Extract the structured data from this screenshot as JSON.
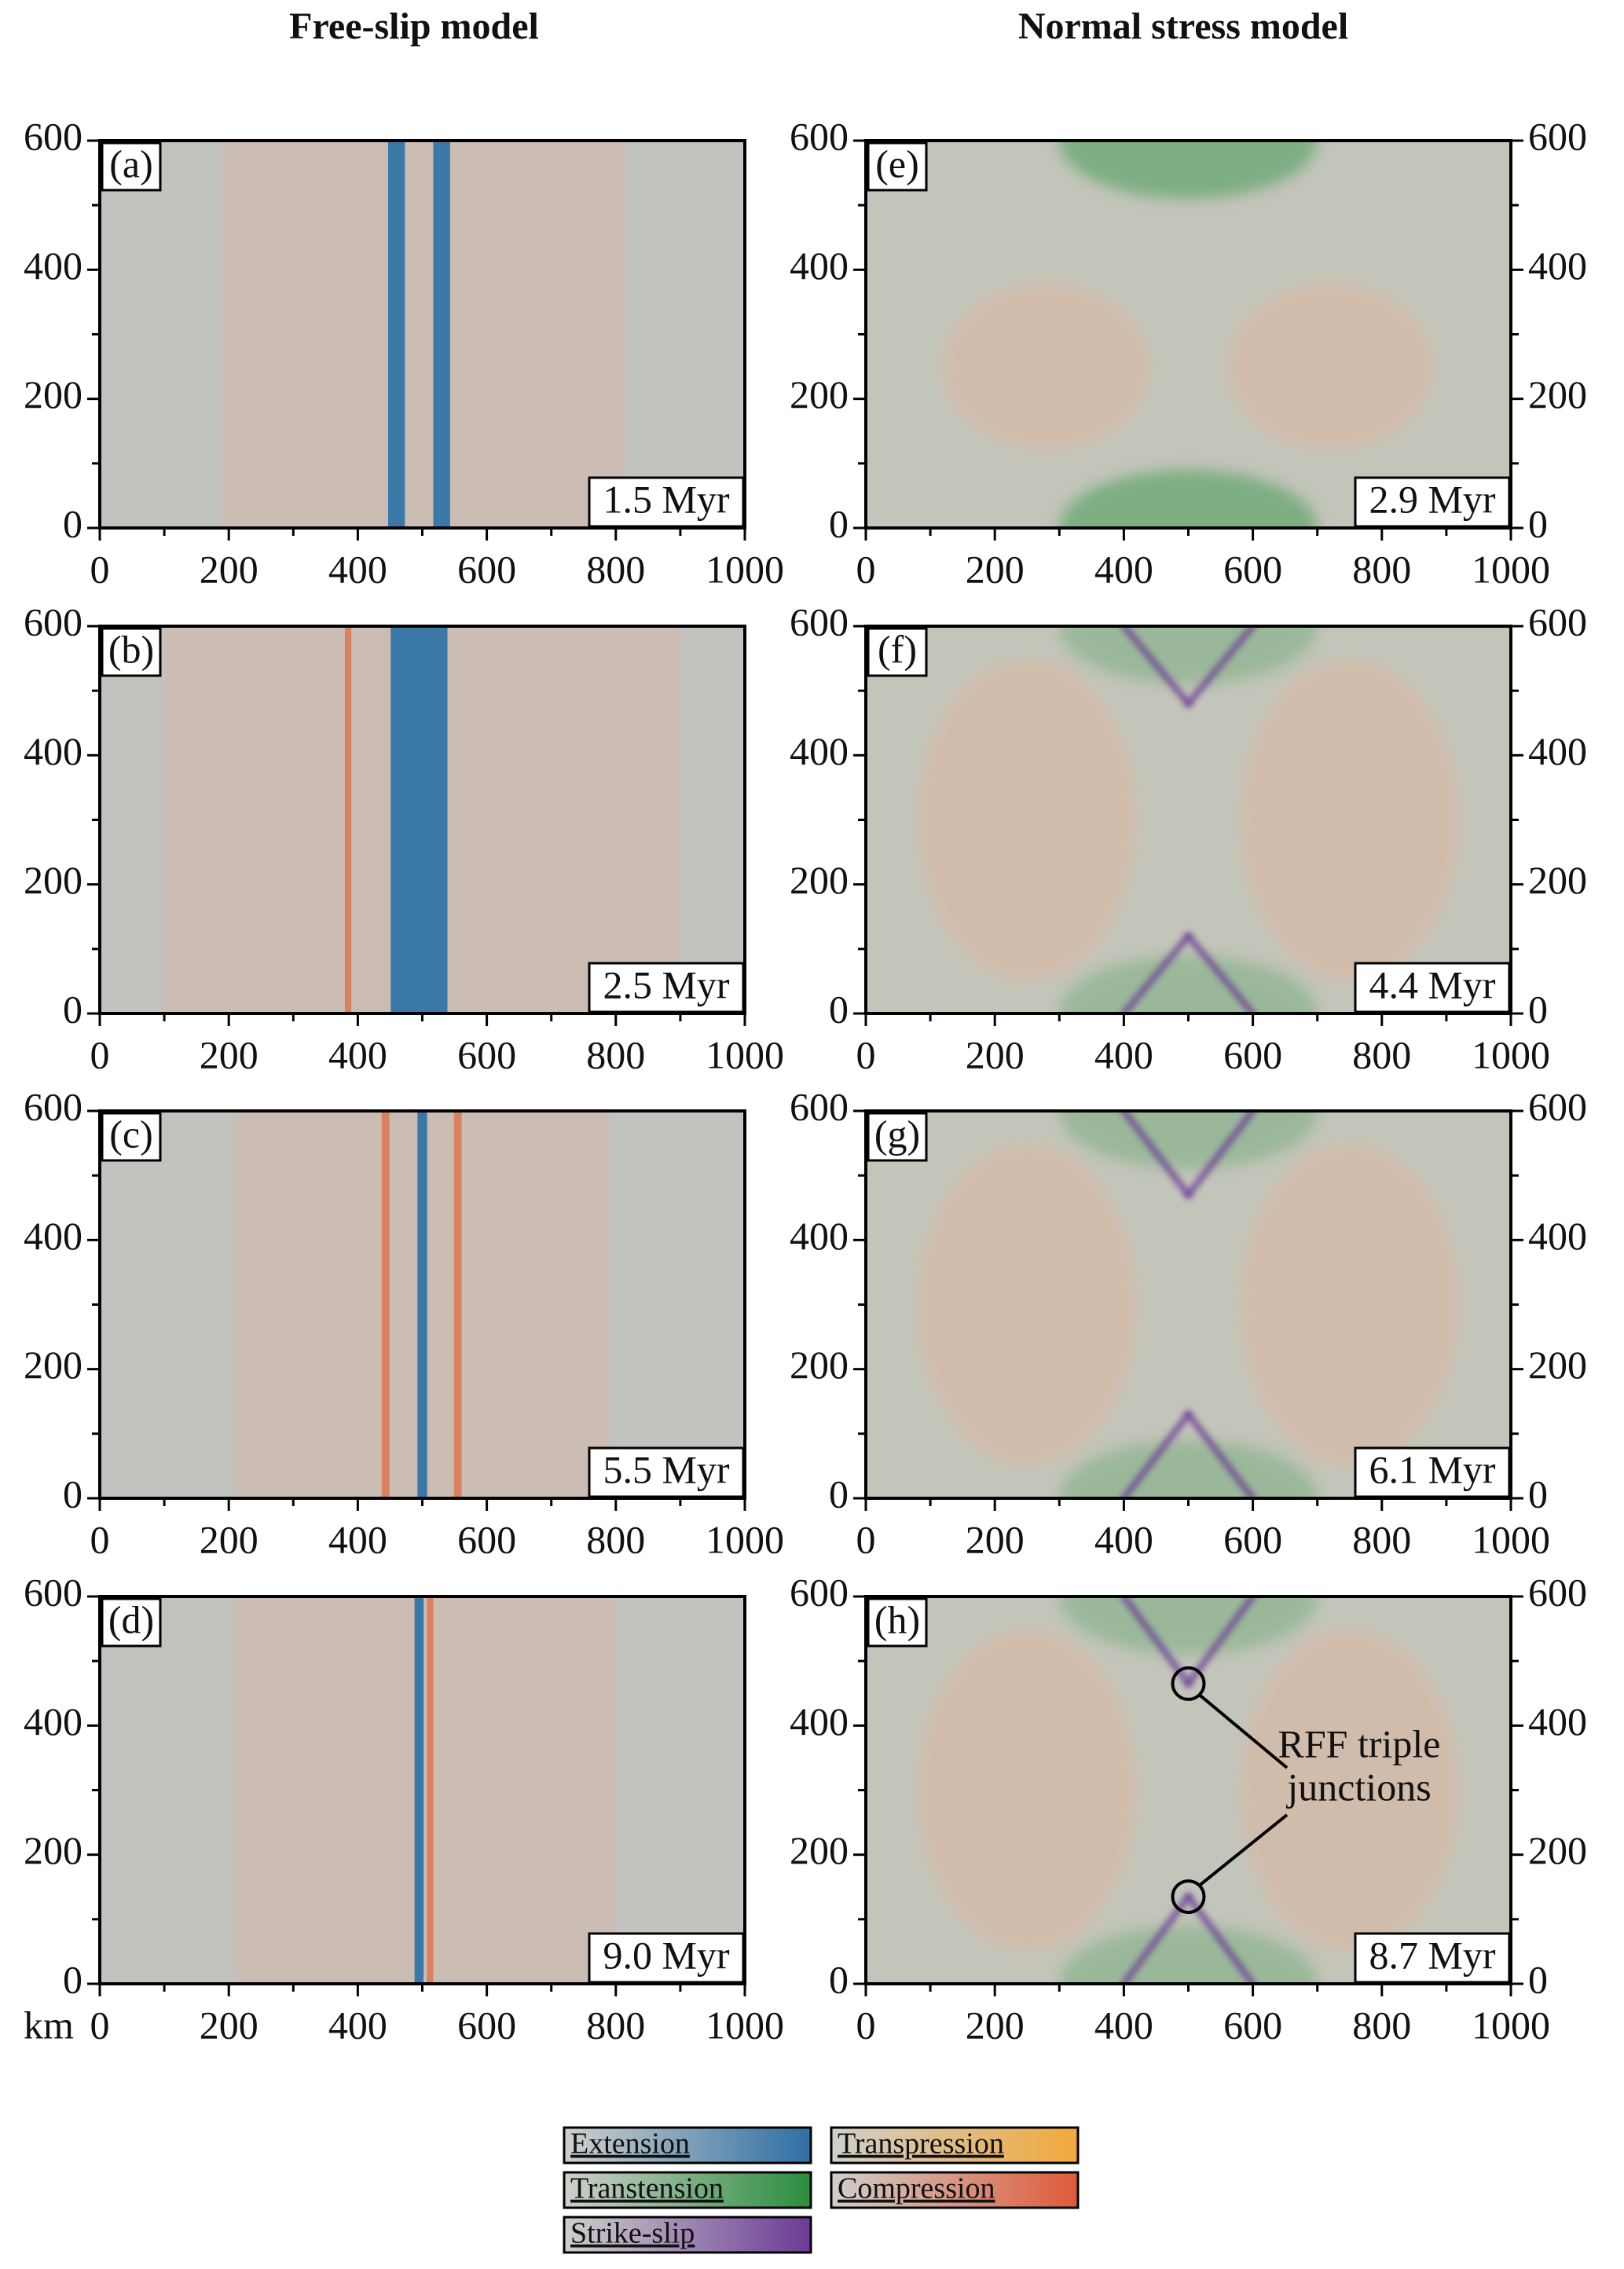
{
  "columns": [
    "Free-slip model",
    "Normal stress model"
  ],
  "axes": {
    "xlim": [
      0,
      1000
    ],
    "ylim": [
      0,
      600
    ],
    "xticks": [
      0,
      200,
      400,
      600,
      800,
      1000
    ],
    "yticks": [
      0,
      200,
      400,
      600
    ],
    "xminorticks": [
      100,
      300,
      500,
      700,
      900
    ],
    "yminorticks": [
      100,
      300,
      500
    ],
    "xlabel": "km"
  },
  "panels": [
    {
      "label": "(a)",
      "time": "1.5 Myr"
    },
    {
      "label": "(b)",
      "time": "2.5 Myr"
    },
    {
      "label": "(c)",
      "time": "5.5 Myr"
    },
    {
      "label": "(d)",
      "time": "9.0 Myr"
    },
    {
      "label": "(e)",
      "time": "2.9 Myr"
    },
    {
      "label": "(f)",
      "time": "4.4 Myr"
    },
    {
      "label": "(g)",
      "time": "6.1 Myr"
    },
    {
      "label": "(h)",
      "time": "8.7 Myr"
    }
  ],
  "annotation": {
    "lines": [
      "RFF triple",
      "junctions"
    ]
  },
  "legend": [
    {
      "name": "Extension",
      "color": "#2f6fa5"
    },
    {
      "name": "Transpression",
      "color": "#f2a93b"
    },
    {
      "name": "Transtension",
      "color": "#2a8d3e"
    },
    {
      "name": "Compression",
      "color": "#e05a3a"
    },
    {
      "name": "Strike-slip",
      "color": "#6b3b96"
    }
  ]
}
